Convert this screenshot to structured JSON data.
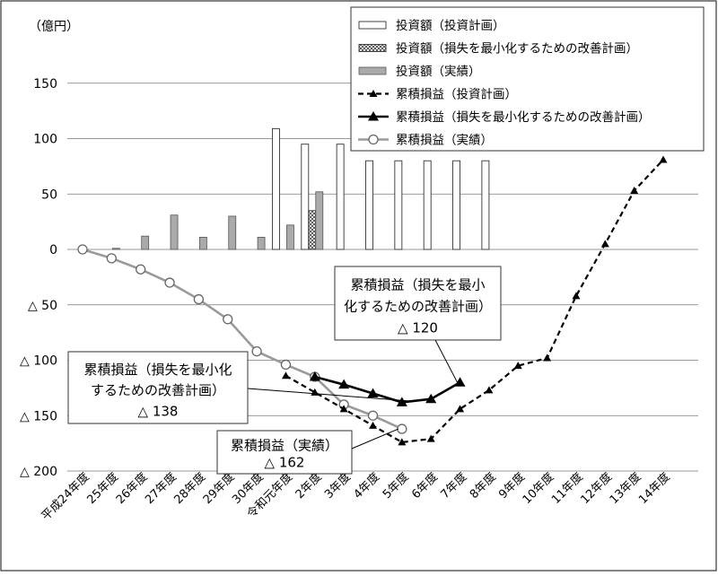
{
  "chart_data": {
    "type": "bar+line",
    "unit_label": "（億円）",
    "ylim": [
      -200,
      175
    ],
    "yticks": [
      {
        "value": 150,
        "label": "150"
      },
      {
        "value": 100,
        "label": "100"
      },
      {
        "value": 50,
        "label": "50"
      },
      {
        "value": 0,
        "label": "0"
      },
      {
        "value": -50,
        "label": "△  50"
      },
      {
        "value": -100,
        "label": "△ 100"
      },
      {
        "value": -150,
        "label": "△ 150"
      },
      {
        "value": -200,
        "label": "△ 200"
      }
    ],
    "grid": true,
    "legend_position": "top-right",
    "categories": [
      "平成24年度",
      "25年度",
      "26年度",
      "27年度",
      "28年度",
      "29年度",
      "30年度",
      "令和元年度",
      "2年度",
      "3年度",
      "4年度",
      "5年度",
      "6年度",
      "7年度",
      "8年度",
      "9年度",
      "10年度",
      "11年度",
      "12年度",
      "13年度",
      "14年度"
    ],
    "bar_series": [
      {
        "name": "投資額（投資計画）",
        "style": "outline",
        "values": [
          null,
          null,
          null,
          null,
          null,
          null,
          null,
          109,
          95,
          95,
          80,
          80,
          80,
          80,
          80,
          null,
          null,
          null,
          null,
          null,
          null
        ]
      },
      {
        "name": "投資額（損失を最小化するための改善計画）",
        "style": "hatched",
        "values": [
          null,
          null,
          null,
          null,
          null,
          null,
          null,
          null,
          35,
          null,
          null,
          null,
          null,
          null,
          null,
          null,
          null,
          null,
          null,
          null,
          null
        ]
      },
      {
        "name": "投資額（実績）",
        "style": "gray",
        "values": [
          null,
          1,
          12,
          31,
          11,
          30,
          11,
          22,
          52,
          null,
          null,
          null,
          null,
          null,
          null,
          null,
          null,
          null,
          null,
          null,
          null
        ]
      }
    ],
    "line_series": [
      {
        "name": "累積損益（投資計画）",
        "style": "dashed-small-triangle",
        "values": [
          null,
          null,
          null,
          null,
          null,
          null,
          null,
          -114,
          -129,
          -144,
          -159,
          -174,
          -171,
          -144,
          -127,
          -105,
          -98,
          -42,
          5,
          53,
          81
        ]
      },
      {
        "name": "累積損益（損失を最小化するための改善計画）",
        "style": "solid-triangle",
        "values": [
          null,
          null,
          null,
          null,
          null,
          null,
          null,
          null,
          -115,
          -122,
          -130,
          -138,
          -135,
          -120,
          null,
          null,
          null,
          null,
          null,
          null,
          null
        ]
      },
      {
        "name": "累積損益（実績）",
        "style": "gray-circle",
        "values": [
          0,
          -8,
          -18,
          -30,
          -45,
          -63,
          -92,
          -104,
          -115,
          -140,
          -150,
          -162,
          null,
          null,
          null,
          null,
          null,
          null,
          null,
          null,
          null
        ]
      }
    ],
    "annotations": [
      {
        "lines": [
          "累積損益（損失を最小化",
          "するための改善計画）",
          "△ 138"
        ]
      },
      {
        "lines": [
          "累積損益（損失を最小",
          "化するための改善計画）",
          "△ 120"
        ]
      },
      {
        "lines": [
          "累積損益（実績）",
          "△ 162"
        ]
      }
    ]
  }
}
